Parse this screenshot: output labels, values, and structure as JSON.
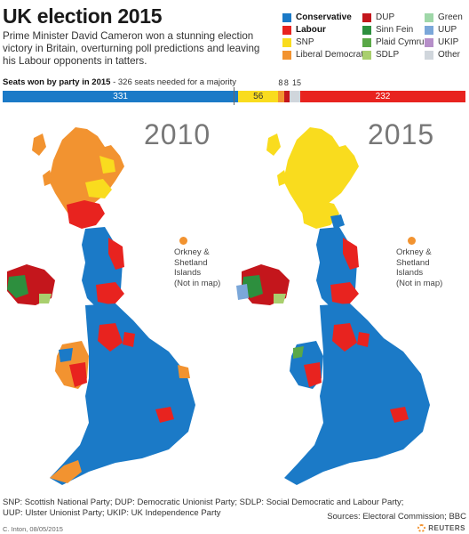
{
  "header": {
    "title": "UK election 2015",
    "description": "Prime Minister David Cameron won a stunning election victory in Britain, overturning poll predictions and leaving his Labour opponents in tatters."
  },
  "legend": {
    "col1": [
      {
        "label": "Conservative",
        "color": "#1b7ac7",
        "bold": true
      },
      {
        "label": "Labour",
        "color": "#e8231f",
        "bold": true
      },
      {
        "label": "SNP",
        "color": "#f9dc1e",
        "bold": false
      },
      {
        "label": "Liberal Democrats",
        "color": "#f29330",
        "bold": false
      }
    ],
    "col2": [
      {
        "label": "DUP",
        "color": "#c4161c"
      },
      {
        "label": "Sinn Fein",
        "color": "#2d8f3e"
      },
      {
        "label": "Plaid Cymru",
        "color": "#5aa847"
      },
      {
        "label": "SDLP",
        "color": "#a9cf6e"
      }
    ],
    "col3": [
      {
        "label": "Green",
        "color": "#9fd7a8"
      },
      {
        "label": "UUP",
        "color": "#7ba7d9"
      },
      {
        "label": "UKIP",
        "color": "#b68fc9"
      },
      {
        "label": "Other",
        "color": "#d0d6dc"
      }
    ]
  },
  "seats": {
    "label_bold": "Seats won by party in 2015",
    "label_rest": " - 326 seats needed for a majority",
    "total": 650,
    "segments": [
      {
        "party": "Conservative",
        "value": 331,
        "label": "331",
        "color": "#1b7ac7"
      },
      {
        "party": "SNP",
        "value": 56,
        "label": "56",
        "color": "#f9dc1e"
      },
      {
        "party": "Liberal Democrats",
        "value": 8,
        "label": "8",
        "color": "#f29330"
      },
      {
        "party": "DUP",
        "value": 8,
        "label": "8",
        "color": "#c4161c"
      },
      {
        "party": "Other",
        "value": 15,
        "label": "15",
        "color": "#d0d6dc"
      },
      {
        "party": "Labour",
        "value": 232,
        "label": "232",
        "color": "#e8231f"
      }
    ]
  },
  "maps": [
    {
      "year": "2010",
      "orkney": [
        "Orkney &",
        "Shetland",
        "Islands",
        "(Not in map)"
      ]
    },
    {
      "year": "2015",
      "orkney": [
        "Orkney &",
        "Shetland",
        "Islands",
        "(Not in map)"
      ]
    }
  ],
  "footer": {
    "line1": "SNP: Scottish National Party; DUP: Democratic Unionist Party; SDLP: Social Democratic and Labour Party;",
    "line2": "UUP: Ulster Unionist Party; UKIP: UK Independence Party",
    "sources": "Sources: Electoral Commission; BBC",
    "credit": "C. Inton, 08/05/2015",
    "brand": "REUTERS"
  }
}
